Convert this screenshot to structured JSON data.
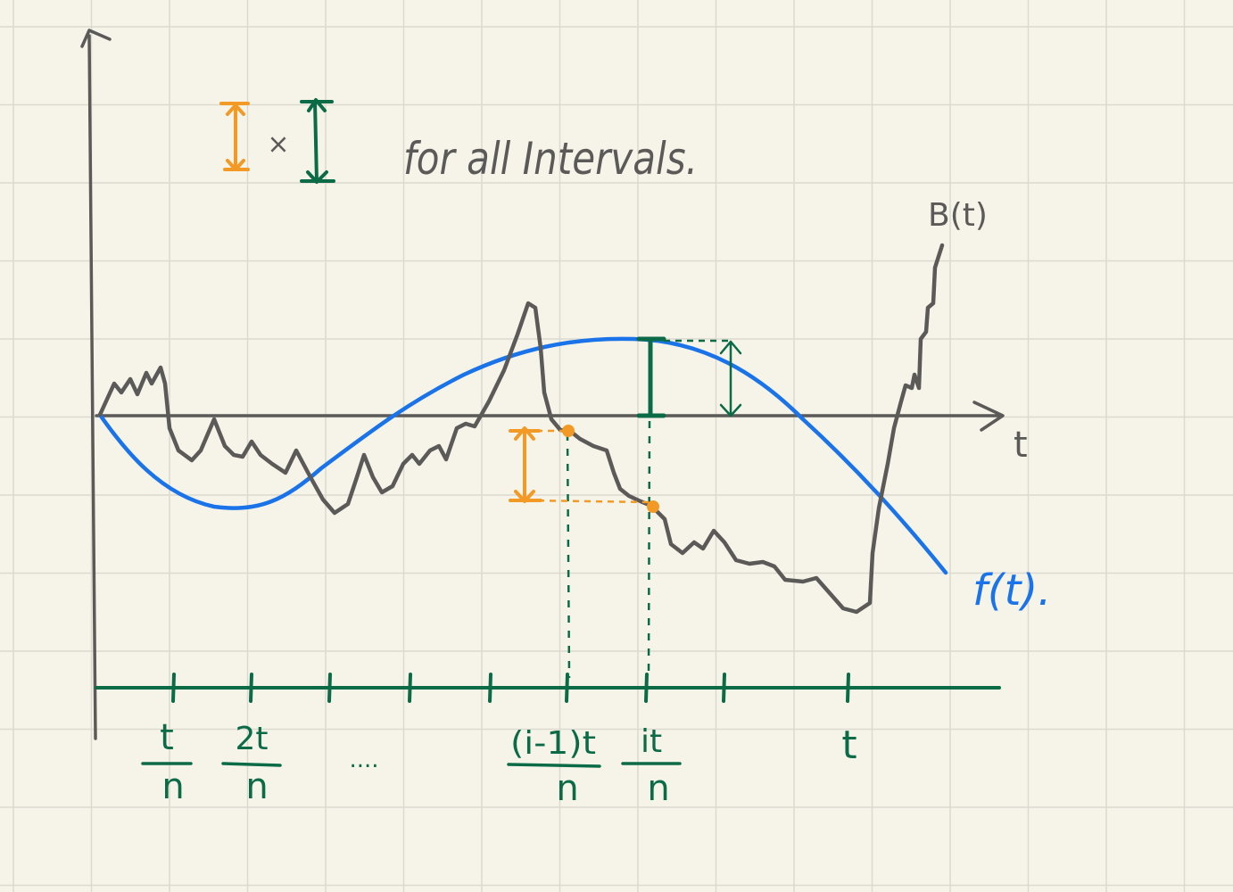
{
  "annotation": {
    "note_text": "for all Intervals.",
    "times_symbol": "×"
  },
  "labels": {
    "brownian": "B(t)",
    "function": "f(t).",
    "time_axis": "t"
  },
  "ticks": [
    {
      "numerator": "t",
      "denominator": "n"
    },
    {
      "numerator": "2t",
      "denominator": "n"
    },
    {
      "ellipsis": "...."
    },
    {
      "numerator": "(i-1)t",
      "denominator": "n"
    },
    {
      "numerator": "it",
      "denominator": "n"
    },
    {
      "numerator": "t",
      "denominator": ""
    }
  ],
  "colors": {
    "paper": "#f6f4e9",
    "grid": "#dcdad0",
    "ink_gray": "#5b5a58",
    "blue": "#1a73e8",
    "green": "#0b6b47",
    "orange": "#f29a25"
  },
  "icons": {
    "orange_bar": "orange-interval-icon",
    "green_bar": "green-interval-icon"
  }
}
